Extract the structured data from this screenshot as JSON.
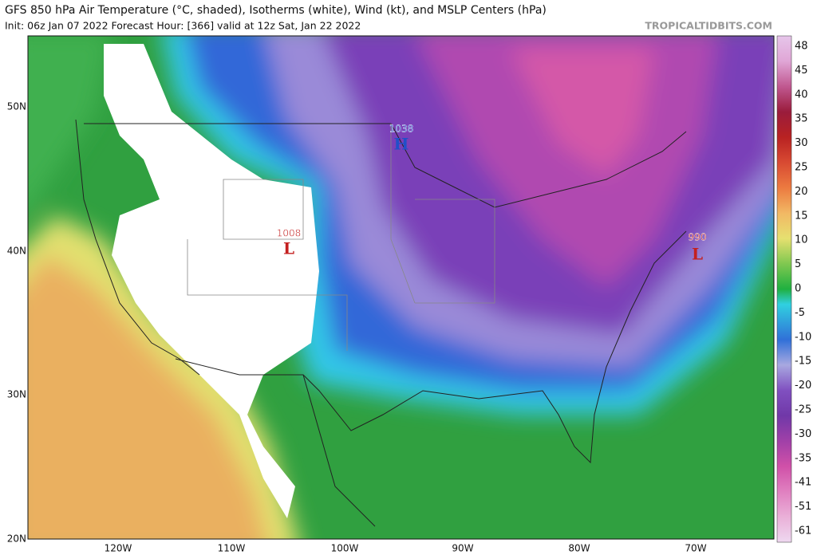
{
  "header": {
    "title": "GFS 850 hPa Air Temperature (°C, shaded), Isotherms (white), Wind (kt), and MSLP Centers (hPa)",
    "subtitle": "Init: 06z Jan 07 2022   Forecast Hour: [366]   valid at 12z Sat, Jan 22 2022",
    "source": "TROPICALTIDBITS.COM"
  },
  "map": {
    "latitude_labels": [
      "50N",
      "40N",
      "30N",
      "20N"
    ],
    "longitude_labels": [
      "120W",
      "110W",
      "100W",
      "90W",
      "80W",
      "70W"
    ],
    "pressure_centers": [
      {
        "value": "1038",
        "symbol": "H"
      },
      {
        "value": "1008",
        "symbol": "L"
      },
      {
        "value": "990",
        "symbol": "L"
      }
    ]
  },
  "colorbar": {
    "labels": [
      48,
      45,
      40,
      35,
      30,
      25,
      20,
      15,
      10,
      5,
      0,
      -5,
      -10,
      -15,
      -20,
      -25,
      -30,
      -35,
      -41,
      -51,
      -61
    ]
  }
}
